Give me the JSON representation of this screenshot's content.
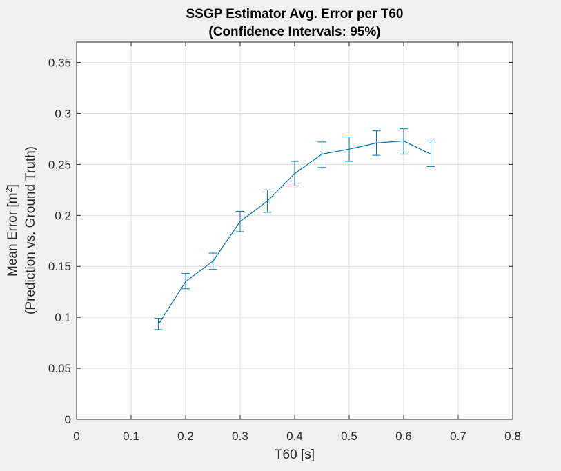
{
  "chart_data": {
    "type": "line",
    "title": [
      "SSGP Estimator Avg. Error per T60",
      "(Confidence Intervals: 95%)"
    ],
    "xlabel": "T60 [s]",
    "ylabel": {
      "line1_prefix": "Mean Error [m",
      "line1_sup": "2",
      "line1_suffix": "]",
      "line2": "(Prediction vs. Ground Truth)"
    },
    "xlim": [
      0,
      0.8
    ],
    "ylim": [
      0,
      0.37
    ],
    "xticks": [
      0,
      0.1,
      0.2,
      0.3,
      0.4,
      0.5,
      0.6,
      0.7,
      0.8
    ],
    "xtick_labels": [
      "0",
      "0.1",
      "0.2",
      "0.3",
      "0.4",
      "0.5",
      "0.6",
      "0.7",
      "0.8"
    ],
    "yticks": [
      0,
      0.05,
      0.1,
      0.15,
      0.2,
      0.25,
      0.3,
      0.35
    ],
    "ytick_labels": [
      "0",
      "0.05",
      "0.1",
      "0.15",
      "0.2",
      "0.25",
      "0.3",
      "0.35"
    ],
    "grid": true,
    "series": [
      {
        "color": "#0072bd",
        "x": [
          0.15,
          0.2,
          0.25,
          0.3,
          0.35,
          0.4,
          0.45,
          0.5,
          0.55,
          0.6,
          0.65
        ],
        "y": [
          0.093,
          0.135,
          0.155,
          0.194,
          0.214,
          0.241,
          0.26,
          0.265,
          0.271,
          0.273,
          0.26
        ],
        "lower": [
          0.088,
          0.128,
          0.147,
          0.184,
          0.203,
          0.229,
          0.247,
          0.253,
          0.259,
          0.26,
          0.248
        ],
        "upper": [
          0.099,
          0.143,
          0.163,
          0.204,
          0.225,
          0.253,
          0.272,
          0.277,
          0.283,
          0.285,
          0.273
        ]
      }
    ]
  }
}
